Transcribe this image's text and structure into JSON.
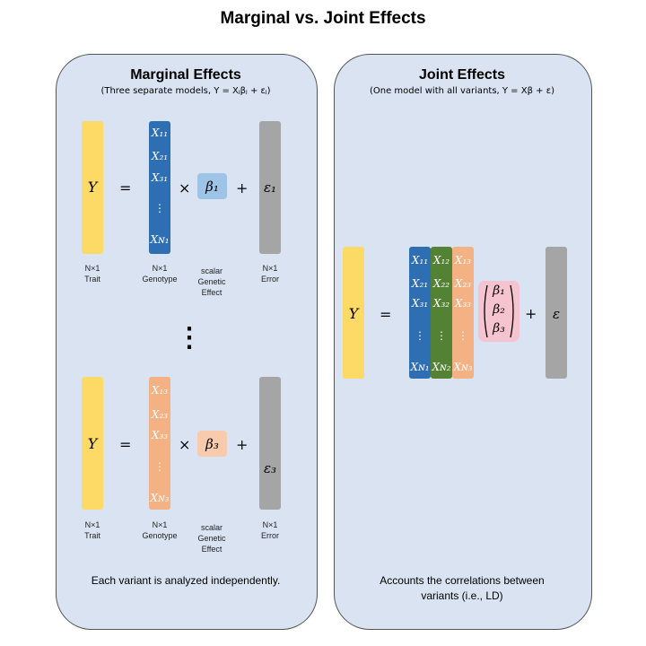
{
  "title": "Marginal vs. Joint Effects",
  "marginal": {
    "title": "Marginal Effects",
    "subtitle": "(Three separate models, Y = Xⱼβⱼ + εⱼ)",
    "footer": "Each variant is analyzed independently.",
    "row1": {
      "y": "Y",
      "eq": "=",
      "times": "×",
      "plus": "+",
      "beta": "β₁",
      "err": "ε₁",
      "x_cells": [
        "X₁₁",
        "X₂₁",
        "X₃₁",
        "⋮",
        "Xɴ₁"
      ]
    },
    "row3": {
      "y": "Y",
      "eq": "=",
      "times": "×",
      "plus": "+",
      "beta": "β₃",
      "err": "ε₃",
      "x_cells": [
        "X₁₃",
        "X₂₃",
        "X₃₃",
        "⋮",
        "Xɴ₃"
      ]
    },
    "vdots": "⋮",
    "labels": {
      "trait": "N×1\nTrait",
      "genotype": "N×1\nGenotype",
      "effect": "scalar\nGenetic\nEffect",
      "error": "N×1\nError"
    }
  },
  "joint": {
    "title": "Joint Effects",
    "subtitle": "(One model with all variants, Y = Xβ + ε)",
    "footer1": "Accounts the correlations between",
    "footer2": "variants (i.e., LD)",
    "y": "Y",
    "eq": "=",
    "plus": "+",
    "err": "ε",
    "col1": [
      "X₁₁",
      "X₂₁",
      "X₃₁",
      "⋮",
      "Xɴ₁"
    ],
    "col2": [
      "X₁₂",
      "X₂₂",
      "X₃₂",
      "⋮",
      "Xɴ₂"
    ],
    "col3": [
      "X₁₃",
      "X₂₃",
      "X₃₃",
      "⋮",
      "Xɴ₃"
    ],
    "betas": [
      "β₁",
      "β₂",
      "β₃"
    ]
  },
  "colors": {
    "panel": "#d9e3f2",
    "trait": "#fdd966",
    "error": "#a5a5a5",
    "genotype1": "#2e6fb4",
    "genotype2": "#548235",
    "genotype3": "#f4b183",
    "beta1": "#9dc3e6",
    "beta3": "#f8cbad",
    "beta_vector": "#f6c3d0"
  }
}
